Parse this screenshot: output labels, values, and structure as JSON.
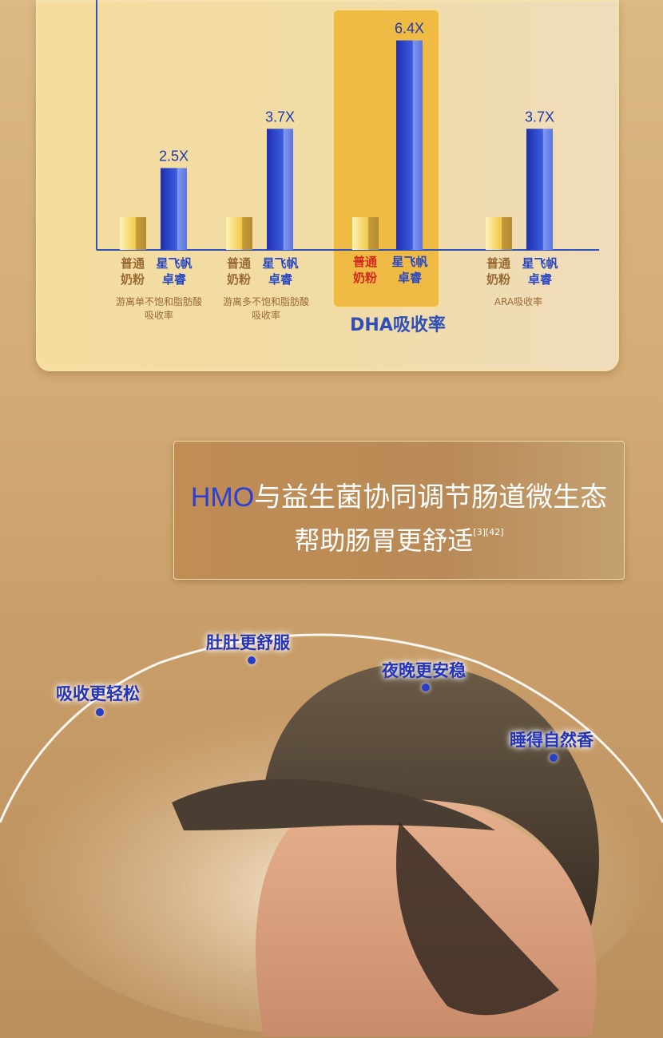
{
  "chart_data": {
    "type": "bar",
    "categories": [
      "游离单不饱和脂肪酸吸收率",
      "游离多不饱和脂肪酸吸收率",
      "DHA吸收率",
      "ARA吸收率"
    ],
    "series": [
      {
        "name": "普通奶粉",
        "values": [
          1,
          1,
          1,
          1
        ],
        "color": "#f0c445"
      },
      {
        "name": "星飞帆卓睿",
        "values": [
          2.5,
          3.7,
          6.4,
          3.7
        ],
        "color": "#2f4fd0"
      }
    ],
    "data_labels": [
      "2.5X",
      "3.7X",
      "6.4X",
      "3.7X"
    ],
    "series_labels": {
      "normal_l1": "普通",
      "normal_l2": "奶粉",
      "product_l1": "星飞帆",
      "product_l2": "卓睿"
    },
    "category_lines": [
      [
        "游离单不饱和脂肪酸",
        "吸收率"
      ],
      [
        "游离多不饱和脂肪酸",
        "吸收率"
      ],
      [
        "DHA吸收率"
      ],
      [
        "ARA吸收率"
      ]
    ],
    "highlight": "DHA吸收率"
  },
  "banner": {
    "line1_highlight": "HMO",
    "line1_rest": "与益生菌协同调节肠道微生态",
    "line2": "帮助肠胃更舒适",
    "refs": "[3][42]"
  },
  "benefits": [
    "吸收更轻松",
    "肚肚更舒服",
    "夜晚更安稳",
    "睡得自然香"
  ]
}
